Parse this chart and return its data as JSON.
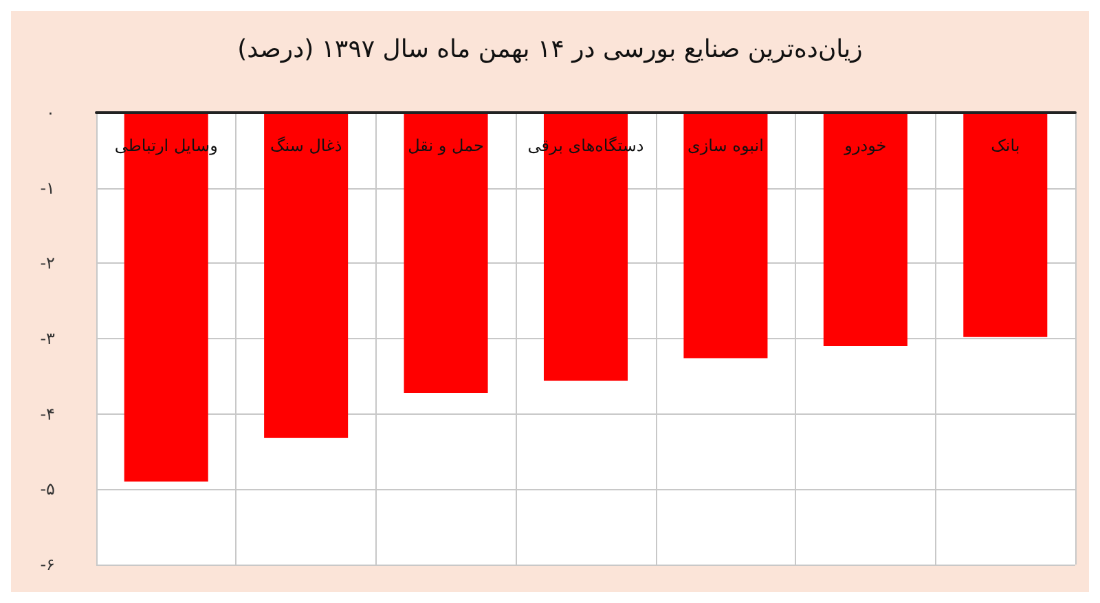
{
  "chart_data": {
    "type": "bar",
    "title": "زیان‌ده‌ترین صنایع بورسی در ۱۴ بهمن ماه سال ۱۳۹۷ (درصد)",
    "categories": [
      "وسایل ارتباطی",
      "ذغال سنگ",
      "حمل و نقل",
      "دستگاه‌های برقی",
      "انبوه سازی",
      "خودرو",
      "بانک"
    ],
    "values": [
      -4.9,
      -4.32,
      -3.72,
      -3.56,
      -3.26,
      -3.1,
      -2.98
    ],
    "color": "#ff0000",
    "ylim": [
      -6,
      0
    ],
    "yticks": [
      {
        "value": 0,
        "label": "۰"
      },
      {
        "value": -1,
        "label": "-۱"
      },
      {
        "value": -2,
        "label": "-۲"
      },
      {
        "value": -3,
        "label": "-۳"
      },
      {
        "value": -4,
        "label": "-۴"
      },
      {
        "value": -5,
        "label": "-۵"
      },
      {
        "value": -6,
        "label": "-۶"
      }
    ],
    "grid": true
  }
}
